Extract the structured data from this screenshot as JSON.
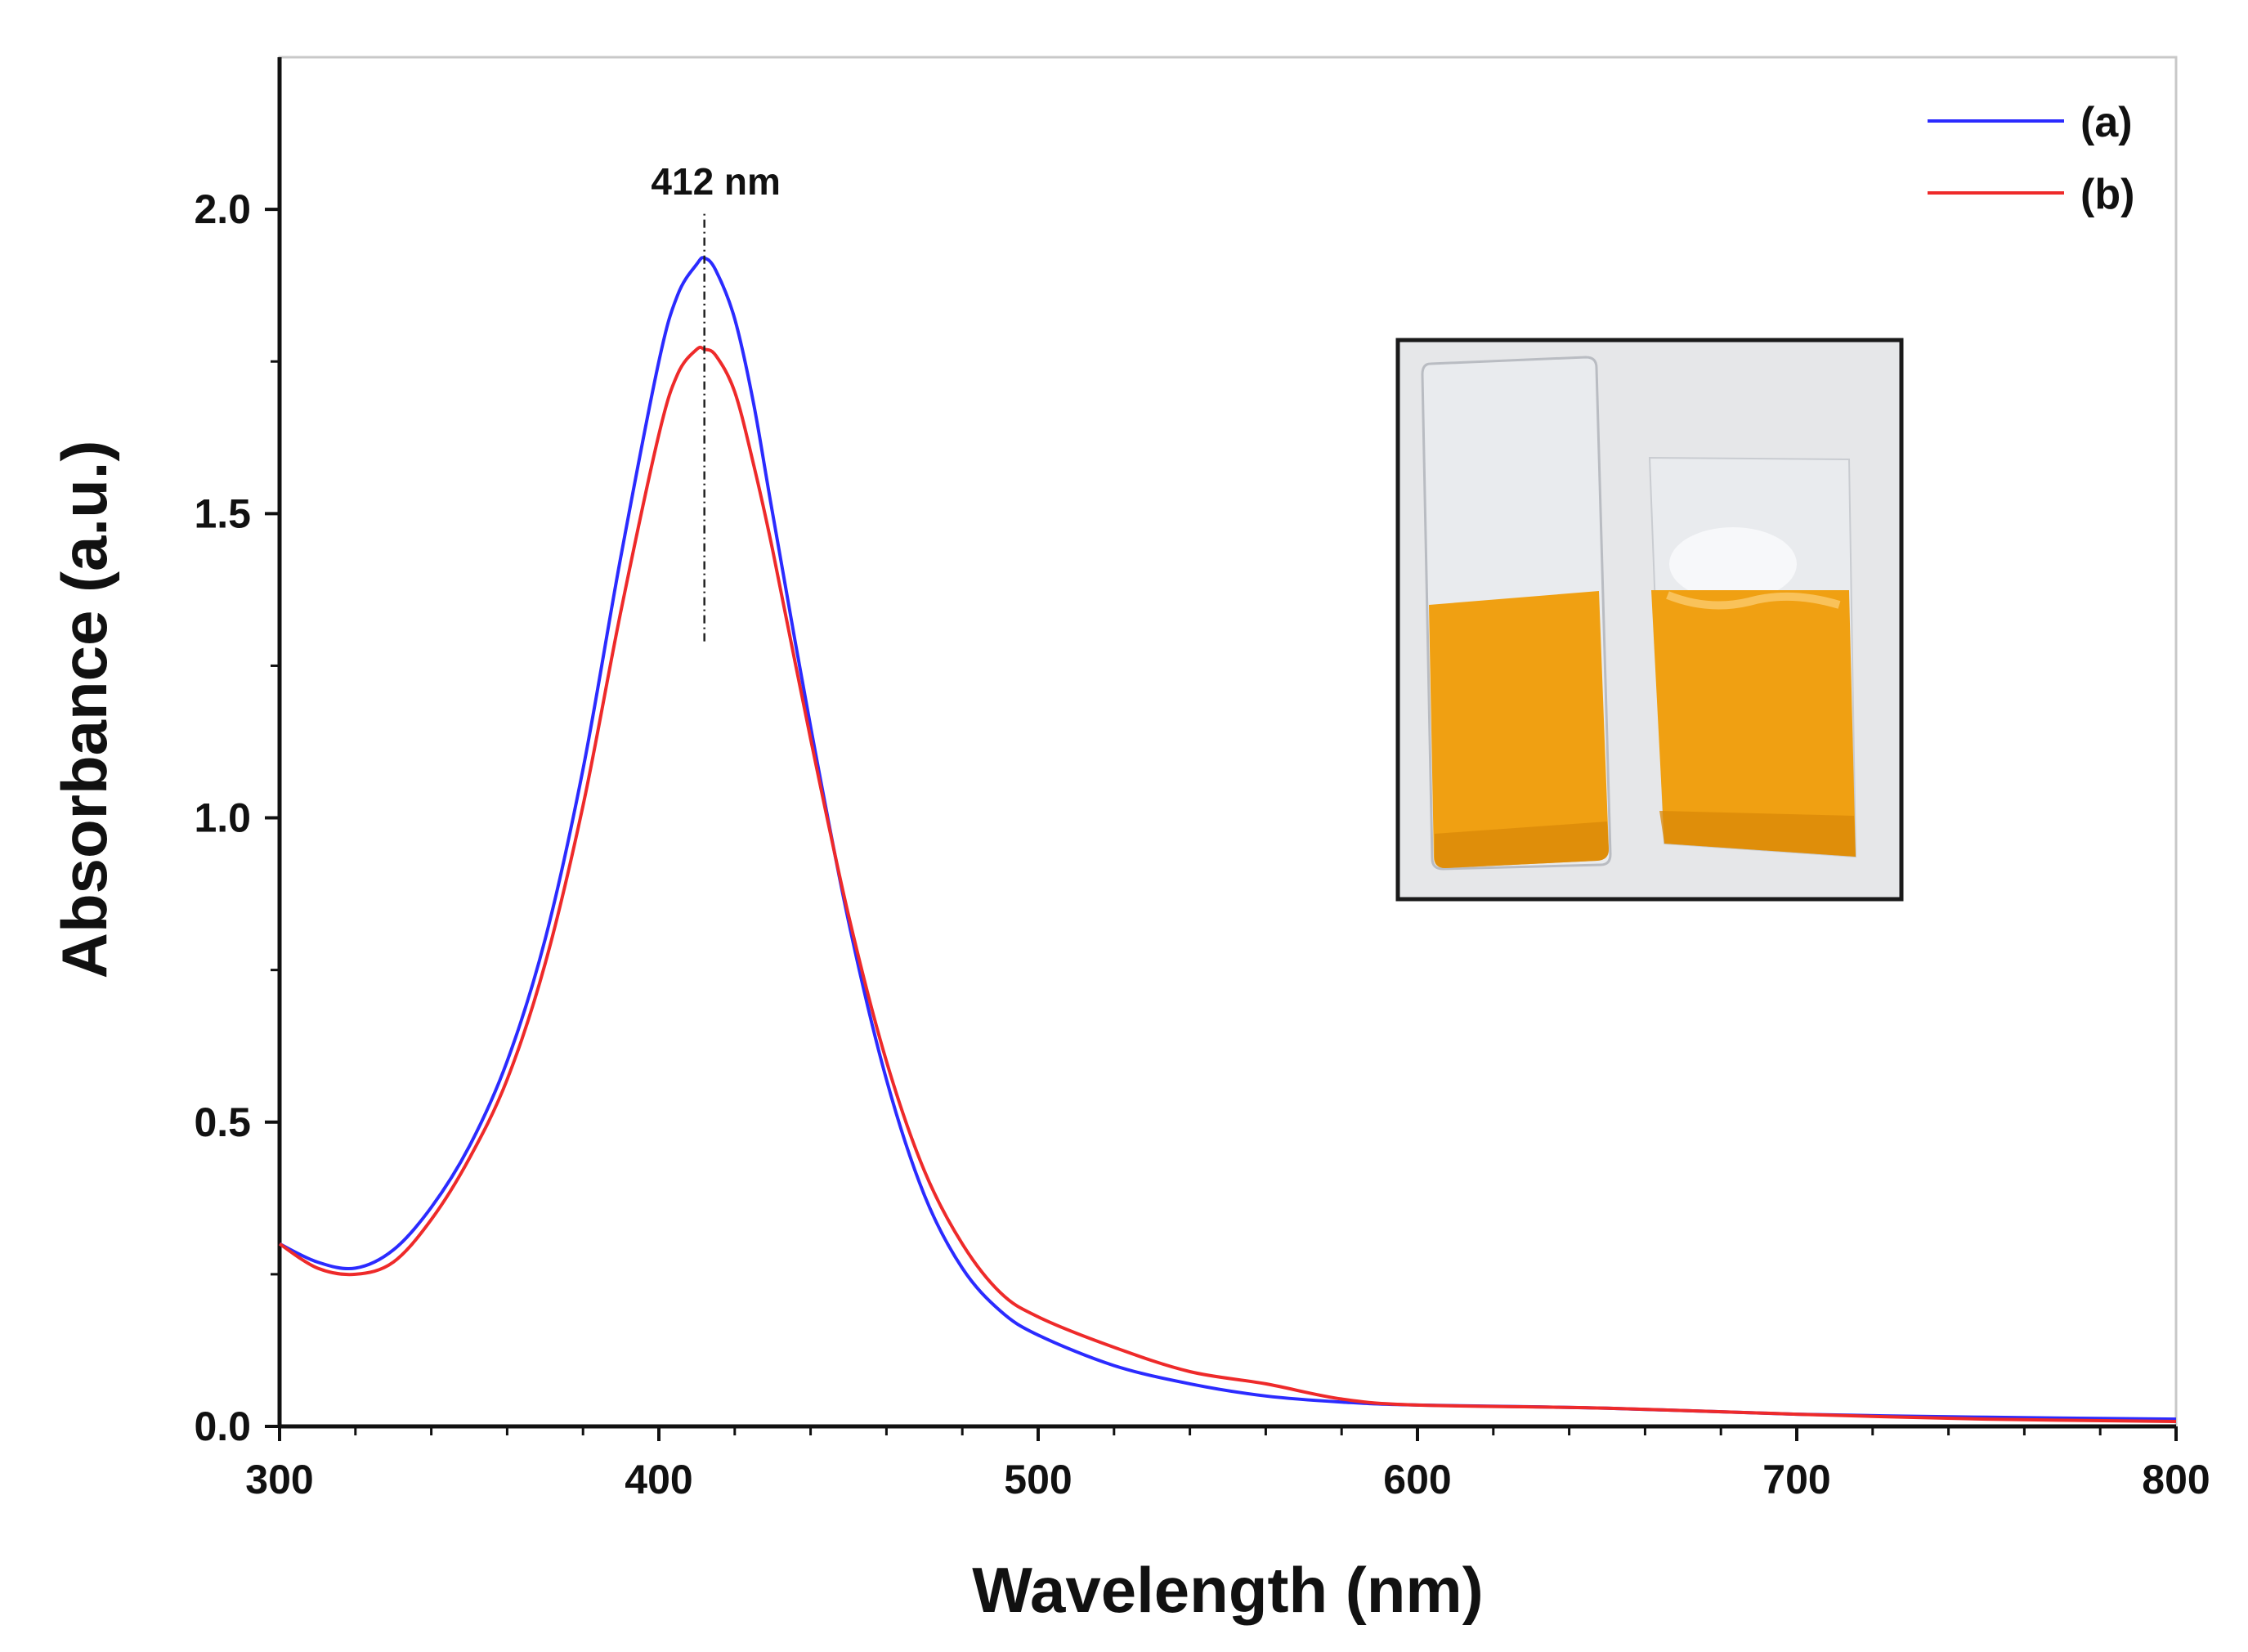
{
  "chart_data": {
    "type": "line",
    "title": "",
    "xlabel": "Wavelength (nm)",
    "ylabel": "Absorbance (a.u.)",
    "xlim": [
      300,
      800
    ],
    "ylim": [
      0,
      2.25
    ],
    "x_ticks": [
      300,
      400,
      500,
      600,
      700,
      800
    ],
    "x_tick_labels": [
      "300",
      "400",
      "500",
      "600",
      "700",
      "800"
    ],
    "y_ticks": [
      0,
      0.5,
      1.0,
      1.5,
      2.0
    ],
    "y_tick_labels": [
      "0.0",
      "0.5",
      "1.0",
      "1.5",
      "2.0"
    ],
    "grid": false,
    "legend_position": "top-right",
    "series": [
      {
        "name": "(a)",
        "color": "#2b2bff",
        "x": [
          300,
          310,
          320,
          330,
          340,
          350,
          360,
          370,
          380,
          390,
          400,
          405,
          410,
          412,
          415,
          420,
          425,
          430,
          440,
          450,
          460,
          470,
          480,
          490,
          500,
          520,
          540,
          560,
          580,
          600,
          650,
          700,
          750,
          800
        ],
        "y": [
          0.3,
          0.27,
          0.26,
          0.29,
          0.36,
          0.46,
          0.6,
          0.8,
          1.08,
          1.43,
          1.75,
          1.86,
          1.91,
          1.92,
          1.9,
          1.82,
          1.68,
          1.5,
          1.15,
          0.83,
          0.57,
          0.38,
          0.26,
          0.19,
          0.15,
          0.1,
          0.07,
          0.05,
          0.04,
          0.035,
          0.03,
          0.02,
          0.015,
          0.012
        ]
      },
      {
        "name": "(b)",
        "color": "#ee2a2a",
        "x": [
          300,
          310,
          320,
          330,
          340,
          350,
          360,
          370,
          380,
          390,
          400,
          405,
          410,
          412,
          415,
          420,
          425,
          430,
          440,
          450,
          460,
          470,
          480,
          490,
          500,
          520,
          540,
          560,
          580,
          600,
          650,
          700,
          750,
          800
        ],
        "y": [
          0.3,
          0.26,
          0.25,
          0.27,
          0.34,
          0.44,
          0.57,
          0.76,
          1.02,
          1.34,
          1.63,
          1.73,
          1.77,
          1.77,
          1.76,
          1.7,
          1.58,
          1.44,
          1.13,
          0.84,
          0.6,
          0.42,
          0.3,
          0.22,
          0.18,
          0.13,
          0.09,
          0.07,
          0.045,
          0.035,
          0.03,
          0.02,
          0.012,
          0.008
        ]
      }
    ],
    "annotations": [
      {
        "text": "412 nm",
        "x": 412,
        "y_from": 1.29,
        "y_to": 2.02
      }
    ],
    "inset": {
      "description_label": "photo of two film samples on slides",
      "colors": {
        "frame": "#1a1a1a",
        "background": "#e6e7e9",
        "film": "#f0a012",
        "film_edge": "#d98808",
        "glass": "#e9ebee"
      }
    }
  }
}
